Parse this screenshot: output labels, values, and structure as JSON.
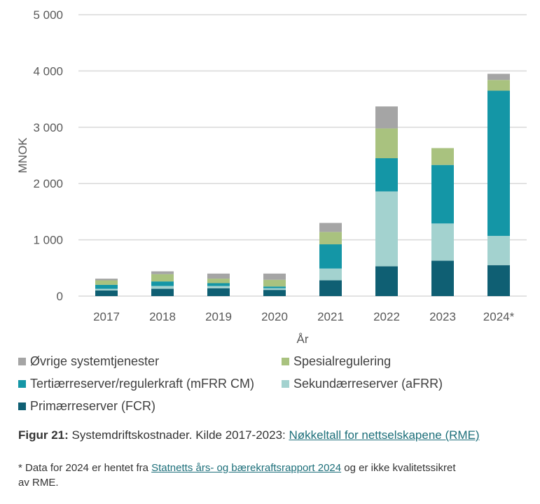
{
  "chart_data": {
    "type": "bar",
    "stacked": true,
    "title": "",
    "xlabel": "År",
    "ylabel": "MNOK",
    "ylim": [
      0,
      5000
    ],
    "yticks": [
      0,
      1000,
      2000,
      3000,
      4000,
      5000
    ],
    "ytick_labels": [
      "0",
      "1 000",
      "2 000",
      "3 000",
      "4 000",
      "5 000"
    ],
    "grid": true,
    "legend_position": "bottom",
    "categories": [
      "2017",
      "2018",
      "2019",
      "2020",
      "2021",
      "2022",
      "2023",
      "2024*"
    ],
    "series": [
      {
        "name": "Primærreserver (FCR)",
        "color": "#0f5f73",
        "values": [
          100,
          130,
          140,
          110,
          280,
          530,
          630,
          550
        ]
      },
      {
        "name": "Sekundærreserver (aFRR)",
        "color": "#a3d2cf",
        "values": [
          30,
          50,
          40,
          30,
          210,
          1330,
          660,
          520
        ]
      },
      {
        "name": "Tertiærreserver/regulerkraft (mFRR CM)",
        "color": "#1496a6",
        "values": [
          70,
          80,
          50,
          30,
          430,
          590,
          1040,
          2580
        ]
      },
      {
        "name": "Spesialregulering",
        "color": "#a9c27f",
        "values": [
          80,
          130,
          80,
          120,
          220,
          530,
          300,
          190
        ]
      },
      {
        "name": "Øvrige systemtjenester",
        "color": "#a5a5a5",
        "values": [
          30,
          50,
          90,
          110,
          160,
          390,
          0,
          110
        ]
      }
    ]
  },
  "legend": [
    {
      "label": "Øvrige systemtjenester",
      "color": "#a5a5a5"
    },
    {
      "label": "Spesialregulering",
      "color": "#a9c27f"
    },
    {
      "label": "Tertiærreserver/regulerkraft (mFRR CM)",
      "color": "#1496a6"
    },
    {
      "label": "Sekundærreserver (aFRR)",
      "color": "#a3d2cf"
    },
    {
      "label": "Primærreserver (FCR)",
      "color": "#0f5f73"
    }
  ],
  "caption": {
    "label": "Figur 21:",
    "text": " Systemdriftskostnader. Kilde 2017-2023: ",
    "link": "Nøkkeltall for nettselskapene (RME)"
  },
  "note": {
    "prefix": "* Data for 2024 er hentet fra ",
    "link": "Statnetts års- og bærekraftsrapport 2024",
    "suffix": " og er ikke kvalitetssikret",
    "line2": "av RME."
  }
}
